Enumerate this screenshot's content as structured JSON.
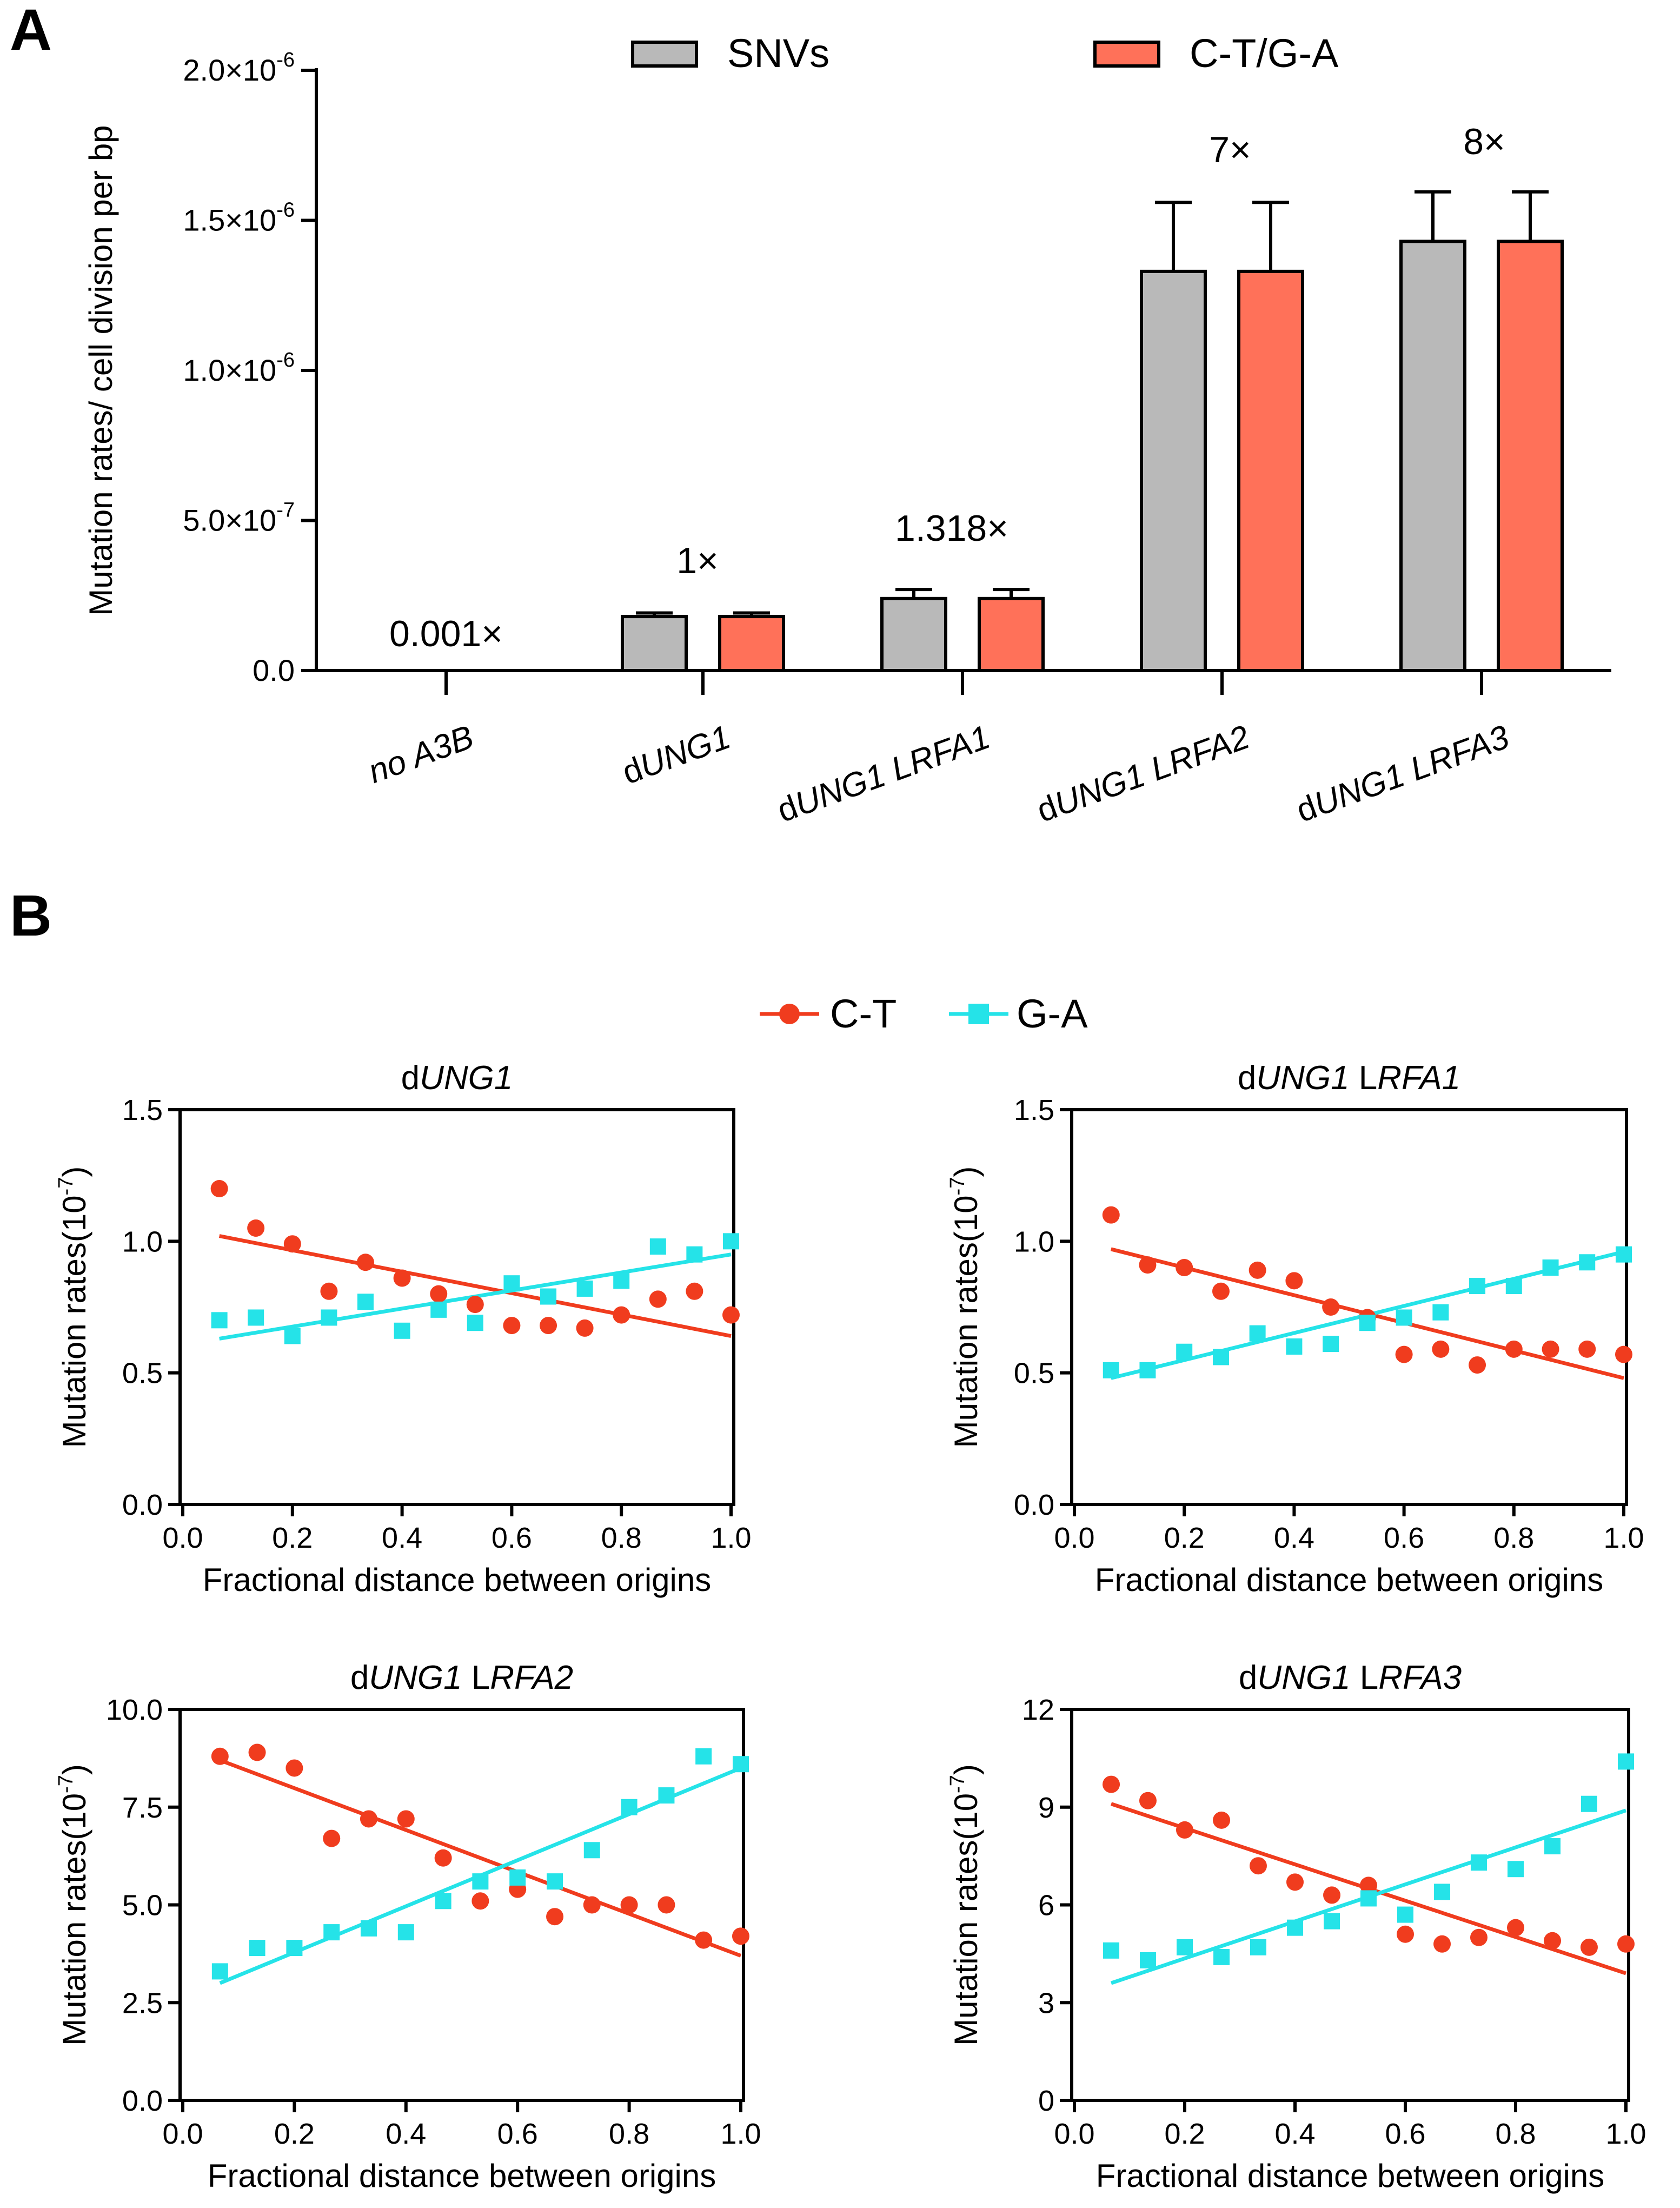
{
  "figure": {
    "panel_a_letter": "A",
    "panel_b_letter": "B"
  },
  "colors": {
    "snv_bar": "#b9b9b9",
    "ct_ga_bar": "#ff7159",
    "ct_series": "#f03c1e",
    "ga_series": "#25e3e8"
  },
  "chart_data": [
    {
      "id": "panel-a",
      "type": "bar",
      "ylabel": "Mutation rates/ cell division per bp",
      "ylim": [
        0,
        2e-06
      ],
      "yticks": [
        {
          "value": 0,
          "label": "0.0"
        },
        {
          "value": 5e-07,
          "label": "5.0×10",
          "exp": "-7"
        },
        {
          "value": 1e-06,
          "label": "1.0×10",
          "exp": "-6"
        },
        {
          "value": 1.5e-06,
          "label": "1.5×10",
          "exp": "-6"
        },
        {
          "value": 2e-06,
          "label": "2.0×10",
          "exp": "-6"
        }
      ],
      "categories": [
        {
          "prefix": "",
          "name": "no A3B"
        },
        {
          "prefix": "d",
          "name": "UNG1"
        },
        {
          "prefix": "d",
          "name": "UNG1 LRFA1"
        },
        {
          "prefix": "d",
          "name": "UNG1 LRFA2"
        },
        {
          "prefix": "d",
          "name": "UNG1 LRFA3"
        }
      ],
      "series": [
        {
          "name": "SNVs",
          "color": "#b9b9b9",
          "values": [
            2e-11,
            1.8e-07,
            2.4e-07,
            1.33e-06,
            1.43e-06
          ],
          "errors": [
            0,
            1.2e-08,
            3e-08,
            2.3e-07,
            1.65e-07
          ]
        },
        {
          "name": "C-T/G-A",
          "color": "#ff7159",
          "values": [
            2e-11,
            1.8e-07,
            2.4e-07,
            1.33e-06,
            1.43e-06
          ],
          "errors": [
            0,
            1.2e-08,
            3e-08,
            2.3e-07,
            1.65e-07
          ]
        }
      ],
      "fold_labels": [
        "0.001×",
        "1×",
        "1.318×",
        "7×",
        "8×"
      ],
      "legend": [
        "SNVs",
        "C-T/G-A"
      ]
    },
    {
      "id": "panel-b",
      "type": "scatter",
      "legend": [
        "C-T",
        "G-A"
      ],
      "xlabel": "Fractional distance between origins",
      "ylabel": "Mutation rates(10",
      "ylabel_exp": "-7",
      "ylabel_tail": ")",
      "xlim": [
        0,
        1.0
      ],
      "xticks": [
        "0.0",
        "0.2",
        "0.4",
        "0.6",
        "0.8",
        "1.0"
      ],
      "x": [
        0.0667,
        0.1333,
        0.2,
        0.2667,
        0.3333,
        0.4,
        0.4667,
        0.5333,
        0.6,
        0.6667,
        0.7333,
        0.8,
        0.8667,
        0.9333,
        1.0
      ],
      "subplots": [
        {
          "title_prefix": "d",
          "title_gene": "UNG1",
          "title_mid": "",
          "title_suffix": "",
          "ylim": [
            0,
            1.5
          ],
          "yticks": [
            "0.0",
            "0.5",
            "1.0",
            "1.5"
          ],
          "ct": [
            1.2,
            1.05,
            0.99,
            0.81,
            0.92,
            0.86,
            0.8,
            0.76,
            0.68,
            0.68,
            0.67,
            0.72,
            0.78,
            0.81,
            0.72
          ],
          "ga": [
            0.7,
            0.71,
            0.64,
            0.71,
            0.77,
            0.66,
            0.74,
            0.69,
            0.84,
            0.79,
            0.82,
            0.85,
            0.98,
            0.95,
            1.0
          ],
          "ct_fit": [
            1.02,
            0.64
          ],
          "ga_fit": [
            0.63,
            0.95
          ]
        },
        {
          "title_prefix": "d",
          "title_gene": "UNG1",
          "title_mid": " L",
          "title_suffix": "RFA1",
          "ylim": [
            0,
            1.5
          ],
          "yticks": [
            "0.0",
            "0.5",
            "1.0",
            "1.5"
          ],
          "ct": [
            1.1,
            0.91,
            0.9,
            0.81,
            0.89,
            0.85,
            0.75,
            0.71,
            0.57,
            0.59,
            0.53,
            0.59,
            0.59,
            0.59,
            0.57
          ],
          "ga": [
            0.51,
            0.51,
            0.58,
            0.56,
            0.65,
            0.6,
            0.61,
            0.69,
            0.71,
            0.73,
            0.83,
            0.83,
            0.9,
            0.92,
            0.95
          ],
          "ct_fit": [
            0.97,
            0.48
          ],
          "ga_fit": [
            0.48,
            0.96
          ]
        },
        {
          "title_prefix": "d",
          "title_gene": "UNG1",
          "title_mid": " L",
          "title_suffix": "RFA2",
          "ylim": [
            0,
            10.0
          ],
          "yticks": [
            "0.0",
            "2.5",
            "5.0",
            "7.5",
            "10.0"
          ],
          "ct": [
            8.8,
            8.9,
            8.5,
            6.7,
            7.2,
            7.2,
            6.2,
            5.1,
            5.4,
            4.7,
            5.0,
            5.0,
            5.0,
            4.1,
            4.2
          ],
          "ga": [
            3.3,
            3.9,
            3.9,
            4.3,
            4.4,
            4.3,
            5.1,
            5.6,
            5.7,
            5.6,
            6.4,
            7.5,
            7.8,
            8.8,
            8.6
          ],
          "ct_fit": [
            8.7,
            3.7
          ],
          "ga_fit": [
            3.0,
            8.5
          ]
        },
        {
          "title_prefix": "d",
          "title_gene": "UNG1",
          "title_mid": " L",
          "title_suffix": "RFA3",
          "ylim": [
            0,
            12
          ],
          "yticks": [
            "0",
            "3",
            "6",
            "9",
            "12"
          ],
          "ct": [
            9.7,
            9.2,
            8.3,
            8.6,
            7.2,
            6.7,
            6.3,
            6.6,
            5.1,
            4.8,
            5.0,
            5.3,
            4.9,
            4.7,
            4.8
          ],
          "ga": [
            4.6,
            4.3,
            4.7,
            4.4,
            4.7,
            5.3,
            5.5,
            6.2,
            5.7,
            6.4,
            7.3,
            7.1,
            7.8,
            9.1,
            10.4
          ],
          "ct_fit": [
            9.1,
            3.9
          ],
          "ga_fit": [
            3.6,
            8.9
          ]
        }
      ]
    }
  ]
}
